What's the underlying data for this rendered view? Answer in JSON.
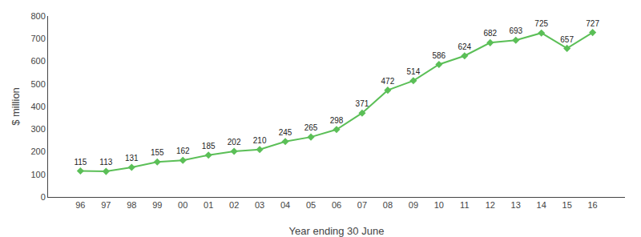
{
  "chart_data": {
    "type": "line",
    "xlabel": "Year ending 30 June",
    "ylabel": "$ million",
    "categories": [
      "96",
      "97",
      "98",
      "99",
      "00",
      "01",
      "02",
      "03",
      "04",
      "05",
      "06",
      "07",
      "08",
      "09",
      "10",
      "11",
      "12",
      "13",
      "14",
      "15",
      "16"
    ],
    "values": [
      115,
      113,
      131,
      155,
      162,
      185,
      202,
      210,
      245,
      265,
      298,
      371,
      472,
      514,
      586,
      624,
      682,
      693,
      725,
      657,
      727
    ],
    "color": "#5BBF57",
    "marker": "diamond",
    "ylim": [
      0,
      800
    ],
    "yticks": [
      0,
      100,
      200,
      300,
      400,
      500,
      600,
      700,
      800
    ],
    "grid": false,
    "data_labels": true
  }
}
